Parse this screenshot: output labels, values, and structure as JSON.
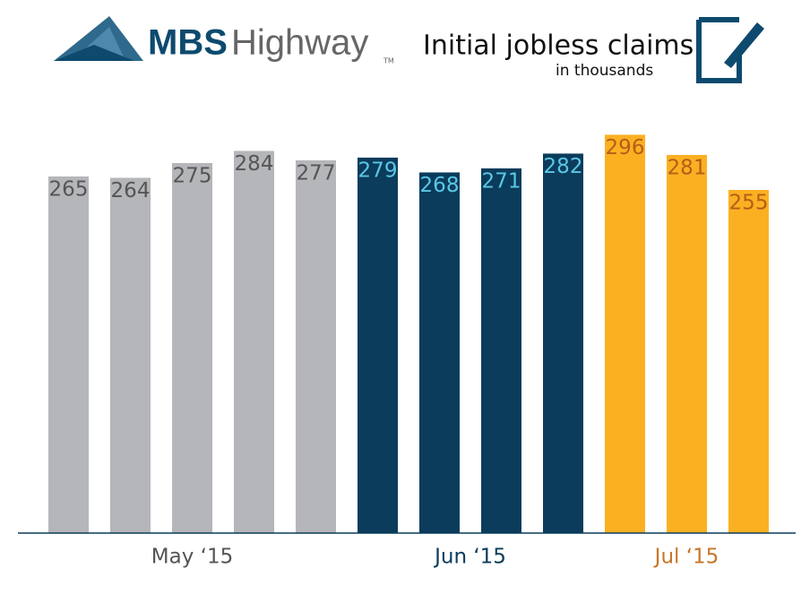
{
  "brand_bold": "MBS",
  "brand": "Highway",
  "trademark": "TM",
  "chart_data": {
    "type": "bar",
    "title": "Initial jobless claims",
    "subtitle": "in thousands",
    "categories": [
      null,
      null,
      null,
      null,
      null,
      null,
      null,
      null,
      null,
      null,
      null,
      null
    ],
    "series": [
      {
        "name": "May ‘15",
        "color": "#b5b6ba",
        "label_color": "#555555",
        "name_color": "#555555",
        "values": [
          265,
          264,
          275,
          284,
          277,
          null,
          null,
          null,
          null,
          null,
          null,
          null
        ]
      },
      {
        "name": "Jun ‘15",
        "color": "#0b3c5b",
        "label_color": "#5bc6e6",
        "name_color": "#0b3c5b",
        "values": [
          null,
          null,
          null,
          null,
          null,
          279,
          268,
          271,
          282,
          null,
          null,
          null
        ]
      },
      {
        "name": "Jul ‘15",
        "color": "#fbb022",
        "label_color": "#b35f18",
        "name_color": "#c8762a",
        "values": [
          null,
          null,
          null,
          null,
          null,
          null,
          null,
          null,
          null,
          296,
          281,
          255
        ]
      }
    ],
    "ylim": [
      0,
      300
    ]
  }
}
